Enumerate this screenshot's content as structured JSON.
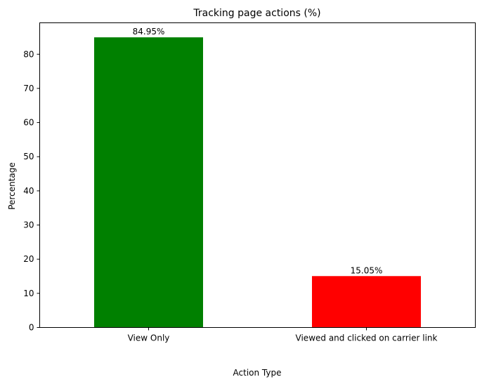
{
  "chart_data": {
    "type": "bar",
    "title": "Tracking page actions (%)",
    "xlabel": "Action Type",
    "ylabel": "Percentage",
    "categories": [
      "View Only",
      "Viewed and clicked on carrier link"
    ],
    "values": [
      84.95,
      15.05
    ],
    "data_labels": [
      "84.95%",
      "15.05%"
    ],
    "colors": [
      "#008000",
      "#ff0000"
    ],
    "ylim": [
      0,
      89.2
    ],
    "yticks": [
      0,
      10,
      20,
      30,
      40,
      50,
      60,
      70,
      80
    ],
    "grid": false,
    "legend": "none"
  }
}
